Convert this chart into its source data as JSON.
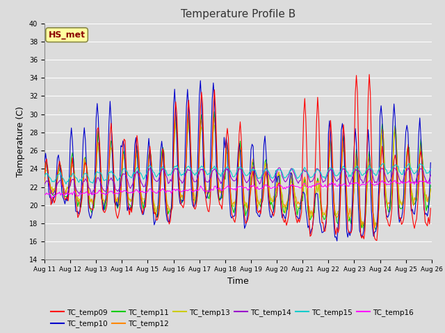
{
  "title": "Temperature Profile B",
  "xlabel": "Time",
  "ylabel": "Temperature (C)",
  "ylim": [
    14,
    40
  ],
  "yticks": [
    14,
    16,
    18,
    20,
    22,
    24,
    26,
    28,
    30,
    32,
    34,
    36,
    38,
    40
  ],
  "annotation_text": "HS_met",
  "annotation_color": "#8B0000",
  "annotation_bg": "#FFFFA0",
  "series_colors": {
    "TC_temp09": "#FF0000",
    "TC_temp10": "#0000CC",
    "TC_temp11": "#00CC00",
    "TC_temp12": "#FF8800",
    "TC_temp13": "#CCCC00",
    "TC_temp14": "#9900CC",
    "TC_temp15": "#00CCCC",
    "TC_temp16": "#FF00FF"
  },
  "plot_bg": "#DCDCDC",
  "grid_color": "#FFFFFF"
}
